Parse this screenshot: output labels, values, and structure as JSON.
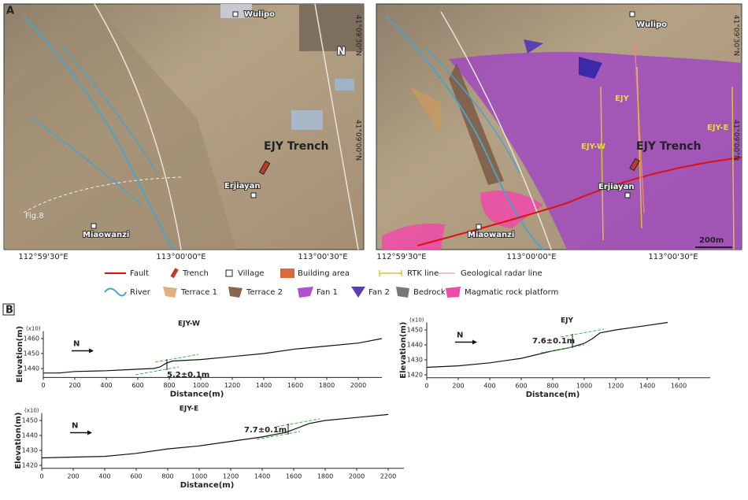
{
  "figure_a": {
    "label": "A",
    "left_map": {
      "villages": [
        "Wulipo",
        "Erjiayan",
        "Miaowanzi"
      ],
      "trench": "EJY Trench",
      "fig_ref": "Fig.8",
      "north": "N",
      "longitudes": [
        "112°59'30\"E",
        "113°00'00\"E",
        "113°00'30\"E"
      ],
      "latitudes": [
        "41°09'30\"N",
        "41°09'00\"N"
      ]
    },
    "right_map": {
      "villages": [
        "Wulipo",
        "Erjiayan",
        "Miaowanzi"
      ],
      "trench": "EJY Trench",
      "profiles": [
        "EJY-W",
        "EJY",
        "EJY-E"
      ],
      "scale": "200m",
      "longitudes": [
        "112°59'30\"E",
        "113°00'00\"E",
        "113°00'30\"E"
      ],
      "latitudes": [
        "41°09'30\"N",
        "41°09'00\"N"
      ]
    },
    "legend": [
      "Fault",
      "Trench",
      "Village",
      "Building area",
      "RTK line",
      "Geological radar line",
      "River",
      "Terrace 1",
      "Terrace 2",
      "Fan 1",
      "Fan 2",
      "Bedrock",
      "Magmatic rock platform"
    ]
  },
  "figure_b": {
    "label": "B"
  },
  "chart_data": [
    {
      "type": "line",
      "title": "EJY-W",
      "x_label": "Distance(m)",
      "y_label": "Elevation(m)",
      "y_multiplier": "(x10)",
      "direction": "N",
      "annotation": "5.2±0.1m",
      "color": "#111",
      "x": [
        0,
        100,
        200,
        400,
        600,
        700,
        740,
        780,
        820,
        1000,
        1200,
        1400,
        1600,
        1800,
        2000,
        2150
      ],
      "values": [
        1437,
        1437,
        1438,
        1438.5,
        1439.5,
        1440,
        1441,
        1443.5,
        1445,
        1446,
        1448,
        1450,
        1453,
        1455,
        1457,
        1460
      ],
      "xlim": [
        0,
        2150
      ],
      "ylim": [
        1434,
        1465
      ],
      "xticks": [
        0,
        200,
        400,
        600,
        800,
        1000,
        1200,
        1400,
        1600,
        1800,
        2000
      ],
      "yticks": [
        1440,
        1450,
        1460
      ]
    },
    {
      "type": "line",
      "title": "EJY",
      "x_label": "Distance(m)",
      "y_label": "Elevation(m)",
      "y_multiplier": "(x10)",
      "direction": "N",
      "annotation": "7.6±0.1m",
      "color": "#111",
      "x": [
        0,
        200,
        400,
        600,
        800,
        900,
        1000,
        1050,
        1100,
        1200,
        1400,
        1530
      ],
      "values": [
        1425,
        1426,
        1428,
        1431,
        1436,
        1438,
        1441,
        1444,
        1448,
        1450,
        1453,
        1455
      ],
      "xlim": [
        0,
        1800
      ],
      "ylim": [
        1418,
        1455
      ],
      "xticks": [
        0,
        200,
        400,
        600,
        800,
        1000,
        1200,
        1400,
        1600
      ],
      "yticks": [
        1420,
        1430,
        1440,
        1450
      ]
    },
    {
      "type": "line",
      "title": "EJY-E",
      "x_label": "Distance(m)",
      "y_label": "Elevation(m)",
      "y_multiplier": "(x10)",
      "direction": "N",
      "annotation": "7.7±0.1m",
      "color": "#111",
      "x": [
        0,
        200,
        400,
        600,
        800,
        1000,
        1200,
        1400,
        1550,
        1650,
        1700,
        1800,
        2000,
        2200
      ],
      "values": [
        1425,
        1425.5,
        1426,
        1428,
        1431,
        1433,
        1436,
        1439,
        1442,
        1446,
        1448,
        1450,
        1452,
        1454
      ],
      "xlim": [
        0,
        2300
      ],
      "ylim": [
        1418,
        1455
      ],
      "xticks": [
        0,
        200,
        400,
        600,
        800,
        1000,
        1200,
        1400,
        1600,
        1800,
        2000,
        2200
      ],
      "yticks": [
        1420,
        1430,
        1440,
        1450
      ]
    }
  ]
}
